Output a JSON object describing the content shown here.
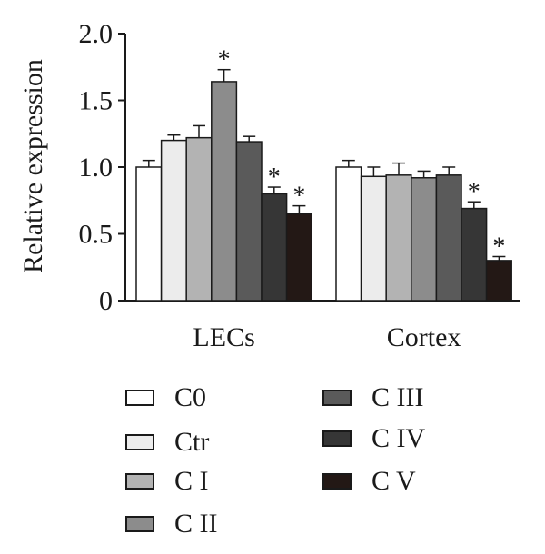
{
  "chart_data": {
    "type": "bar",
    "ylabel": "Relative expression",
    "xlabel": "",
    "ylim": [
      0,
      2.0
    ],
    "yticks": [
      "0",
      "0.5",
      "1.0",
      "1.5",
      "2.0"
    ],
    "ytick_values": [
      0,
      0.5,
      1.0,
      1.5,
      2.0
    ],
    "categories": [
      "LECs",
      "Cortex"
    ],
    "series": [
      {
        "name": "C0",
        "color": "#ffffff",
        "values": [
          1.0,
          1.0
        ],
        "errors": [
          0.05,
          0.05
        ],
        "significant": [
          false,
          false
        ]
      },
      {
        "name": "Ctr",
        "color": "#ececec",
        "values": [
          1.2,
          0.93
        ],
        "errors": [
          0.04,
          0.07
        ],
        "significant": [
          false,
          false
        ]
      },
      {
        "name": "C I",
        "color": "#b3b3b3",
        "values": [
          1.22,
          0.94
        ],
        "errors": [
          0.09,
          0.09
        ],
        "significant": [
          false,
          false
        ]
      },
      {
        "name": "C II",
        "color": "#8c8c8c",
        "values": [
          1.64,
          0.92
        ],
        "errors": [
          0.09,
          0.05
        ],
        "significant": [
          true,
          false
        ]
      },
      {
        "name": "C III",
        "color": "#5a5a5a",
        "values": [
          1.19,
          0.94
        ],
        "errors": [
          0.04,
          0.06
        ],
        "significant": [
          false,
          false
        ]
      },
      {
        "name": "C IV",
        "color": "#363636",
        "values": [
          0.8,
          0.69
        ],
        "errors": [
          0.05,
          0.05
        ],
        "significant": [
          true,
          true
        ]
      },
      {
        "name": "C V",
        "color": "#231815",
        "values": [
          0.65,
          0.3
        ],
        "errors": [
          0.06,
          0.03
        ],
        "significant": [
          true,
          true
        ]
      }
    ],
    "significance_marker": "*",
    "grid": false,
    "legend_position": "bottom"
  }
}
